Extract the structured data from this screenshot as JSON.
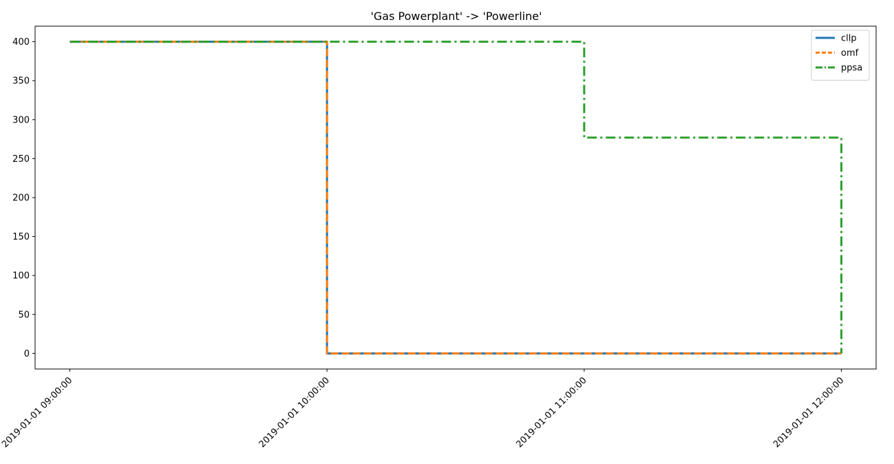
{
  "chart_data": {
    "type": "line",
    "title": "'Gas Powerplant' -> 'Powerline'",
    "xlabel": "",
    "ylabel": "",
    "x_type": "datetime",
    "step": "post",
    "x": [
      "2019-01-01 09:00:00",
      "2019-01-01 10:00:00",
      "2019-01-01 11:00:00",
      "2019-01-01 12:00:00"
    ],
    "xticks": [
      "2019-01-01 09:00:00",
      "2019-01-01 10:00:00",
      "2019-01-01 11:00:00",
      "2019-01-01 12:00:00"
    ],
    "ylim": [
      -20,
      420
    ],
    "yticks": [
      0,
      50,
      100,
      150,
      200,
      250,
      300,
      350,
      400
    ],
    "grid": false,
    "legend_position": "top-right",
    "series": [
      {
        "name": "cllp",
        "values": [
          400,
          0,
          0,
          0
        ],
        "color": "#1f77b4",
        "style": "solid"
      },
      {
        "name": "omf",
        "values": [
          400,
          0,
          0,
          0
        ],
        "color": "#ff7f0e",
        "style": "dashed"
      },
      {
        "name": "ppsa",
        "values": [
          400,
          400,
          277,
          0
        ],
        "color": "#2ca02c",
        "style": "dashdot"
      }
    ]
  }
}
